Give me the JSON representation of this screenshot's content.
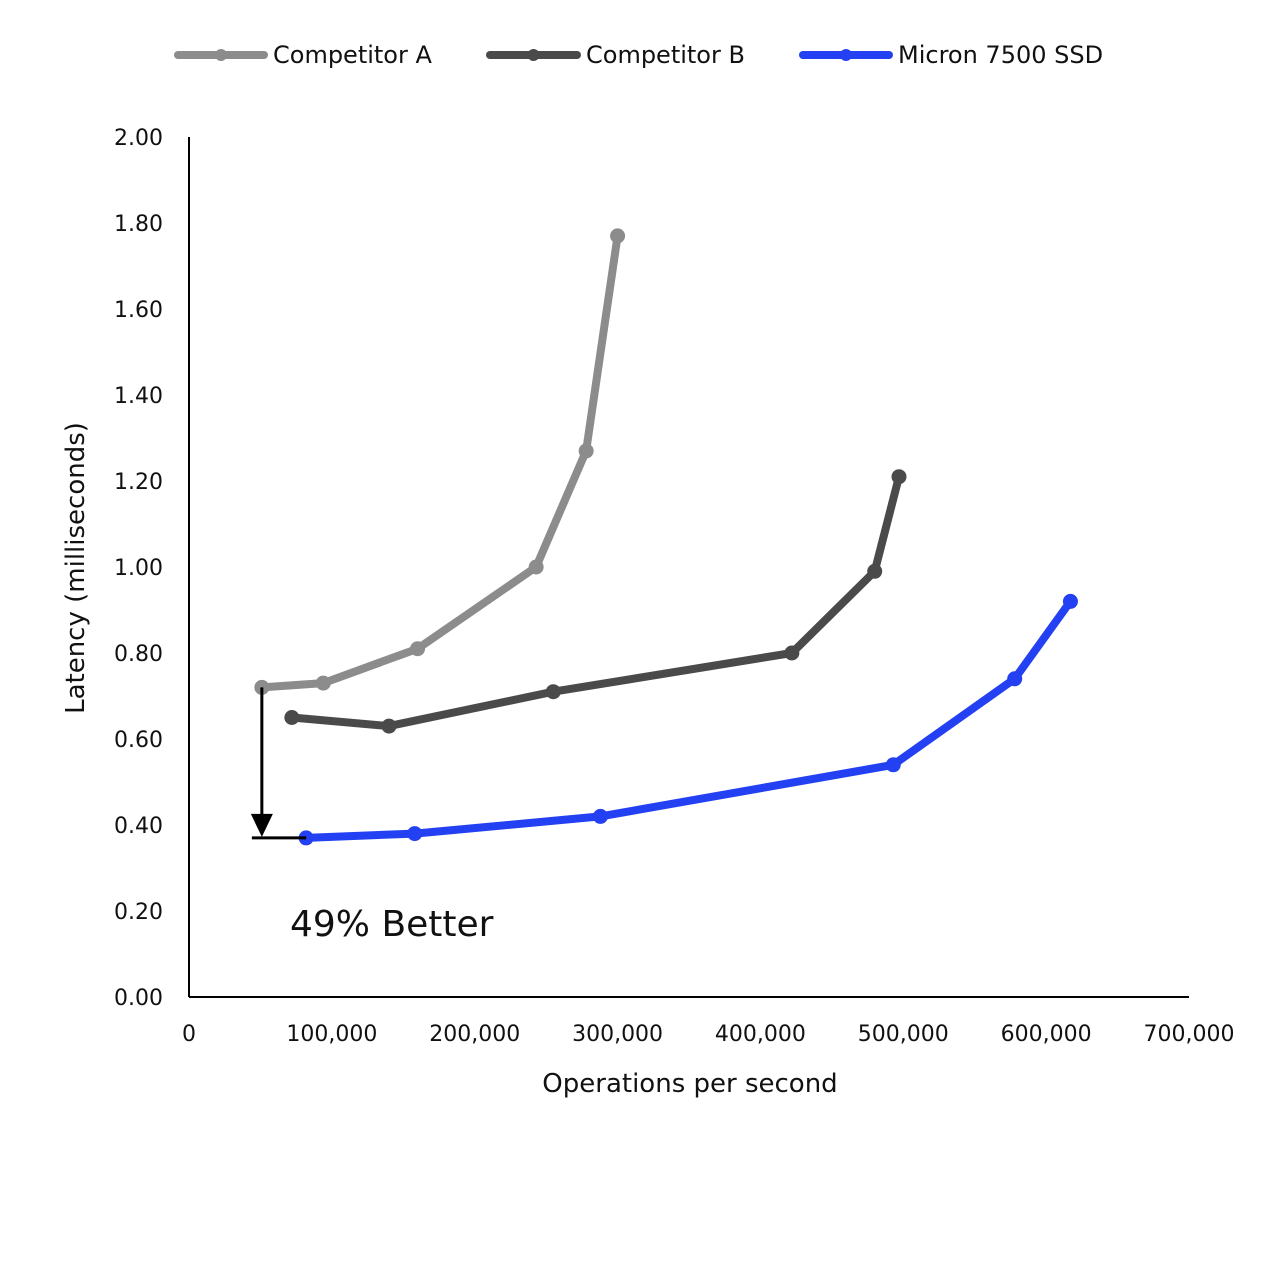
{
  "chart_data": {
    "type": "line",
    "title": "",
    "xlabel": "Operations per second",
    "ylabel": "Latency (milliseconds)",
    "xlim": [
      0,
      700000
    ],
    "ylim": [
      0,
      2.0
    ],
    "x_ticks": [
      0,
      100000,
      200000,
      300000,
      400000,
      500000,
      600000,
      700000
    ],
    "x_tick_labels": [
      "0",
      "100,000",
      "200,000",
      "300,000",
      "400,000",
      "500,000",
      "600,000",
      "700,000"
    ],
    "y_ticks": [
      0,
      0.2,
      0.4,
      0.6,
      0.8,
      1.0,
      1.2,
      1.4,
      1.6,
      1.8,
      2.0
    ],
    "y_tick_labels": [
      "0.00",
      "0.20",
      "0.40",
      "0.60",
      "0.80",
      "1.00",
      "1.20",
      "1.40",
      "1.60",
      "1.80",
      "2.00"
    ],
    "grid": false,
    "legend": "top",
    "series": [
      {
        "name": "Competitor A",
        "color": "#8c8c8c",
        "points": [
          [
            51000,
            0.72
          ],
          [
            94000,
            0.73
          ],
          [
            160000,
            0.81
          ],
          [
            243000,
            1.0
          ],
          [
            278000,
            1.27
          ],
          [
            300000,
            1.77
          ]
        ]
      },
      {
        "name": "Competitor B",
        "color": "#4a4a4a",
        "points": [
          [
            72000,
            0.65
          ],
          [
            140000,
            0.63
          ],
          [
            255000,
            0.71
          ],
          [
            422000,
            0.8
          ],
          [
            480000,
            0.99
          ],
          [
            497000,
            1.21
          ]
        ]
      },
      {
        "name": "Micron 7500 SSD",
        "color": "#2341f2",
        "points": [
          [
            82000,
            0.37
          ],
          [
            158000,
            0.38
          ],
          [
            288000,
            0.42
          ],
          [
            493000,
            0.54
          ],
          [
            578000,
            0.74
          ],
          [
            617000,
            0.92
          ]
        ]
      }
    ],
    "annotation": {
      "text": "49% Better",
      "arrow_x": 51000,
      "arrow_from": 0.72,
      "arrow_to": 0.37,
      "color": "#000000"
    }
  }
}
